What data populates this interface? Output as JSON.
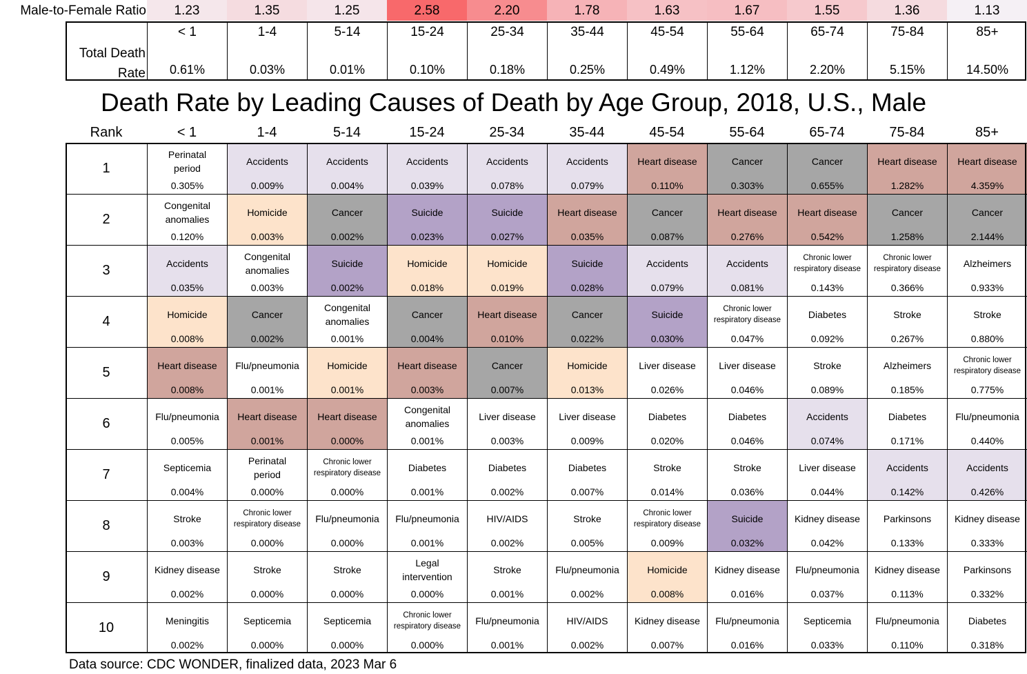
{
  "chart_data": {
    "type": "table",
    "title": "Death Rate by Leading Causes of Death by Age Group, 2018, U.S., Male",
    "ratio_label": "Male-to-Female Ratio",
    "total_label": "Total Death Rate",
    "rank_label": "Rank",
    "source": "Data source: CDC WONDER, finalized data, 2023 Mar 6",
    "age_groups": [
      "< 1",
      "1-4",
      "5-14",
      "15-24",
      "25-34",
      "35-44",
      "45-54",
      "55-64",
      "65-74",
      "75-84",
      "85+"
    ],
    "male_to_female_ratio": [
      "1.23",
      "1.35",
      "1.25",
      "2.58",
      "2.20",
      "1.78",
      "1.63",
      "1.67",
      "1.55",
      "1.36",
      "1.13"
    ],
    "total_death_rate": [
      "0.61%",
      "0.03%",
      "0.01%",
      "0.10%",
      "0.18%",
      "0.25%",
      "0.49%",
      "1.12%",
      "2.20%",
      "5.15%",
      "14.50%"
    ],
    "colors": {
      "Accidents": "#e6e0ec",
      "Heart disease": "#d0a59d",
      "Cancer": "#a6a6a6",
      "Homicide": "#fde3cb",
      "Suicide": "#b3a2c7",
      "ratio_low": "#f5f0f5",
      "ratio_high": "#f8696b"
    },
    "ranks": [
      {
        "rank": "1",
        "cells": [
          {
            "cause": "Perinatal period",
            "rate": "0.305%"
          },
          {
            "cause": "Accidents",
            "rate": "0.009%"
          },
          {
            "cause": "Accidents",
            "rate": "0.004%"
          },
          {
            "cause": "Accidents",
            "rate": "0.039%"
          },
          {
            "cause": "Accidents",
            "rate": "0.078%"
          },
          {
            "cause": "Accidents",
            "rate": "0.079%"
          },
          {
            "cause": "Heart disease",
            "rate": "0.110%"
          },
          {
            "cause": "Cancer",
            "rate": "0.303%"
          },
          {
            "cause": "Cancer",
            "rate": "0.655%"
          },
          {
            "cause": "Heart disease",
            "rate": "1.282%"
          },
          {
            "cause": "Heart disease",
            "rate": "4.359%"
          }
        ]
      },
      {
        "rank": "2",
        "cells": [
          {
            "cause": "Congenital anomalies",
            "rate": "0.120%"
          },
          {
            "cause": "Homicide",
            "rate": "0.003%"
          },
          {
            "cause": "Cancer",
            "rate": "0.002%"
          },
          {
            "cause": "Suicide",
            "rate": "0.023%"
          },
          {
            "cause": "Suicide",
            "rate": "0.027%"
          },
          {
            "cause": "Heart disease",
            "rate": "0.035%"
          },
          {
            "cause": "Cancer",
            "rate": "0.087%"
          },
          {
            "cause": "Heart disease",
            "rate": "0.276%"
          },
          {
            "cause": "Heart disease",
            "rate": "0.542%"
          },
          {
            "cause": "Cancer",
            "rate": "1.258%"
          },
          {
            "cause": "Cancer",
            "rate": "2.144%"
          }
        ]
      },
      {
        "rank": "3",
        "cells": [
          {
            "cause": "Accidents",
            "rate": "0.035%"
          },
          {
            "cause": "Congenital anomalies",
            "rate": "0.003%"
          },
          {
            "cause": "Suicide",
            "rate": "0.002%"
          },
          {
            "cause": "Homicide",
            "rate": "0.018%"
          },
          {
            "cause": "Homicide",
            "rate": "0.019%"
          },
          {
            "cause": "Suicide",
            "rate": "0.028%"
          },
          {
            "cause": "Accidents",
            "rate": "0.079%"
          },
          {
            "cause": "Accidents",
            "rate": "0.081%"
          },
          {
            "cause": "Chronic lower respiratory disease",
            "rate": "0.143%"
          },
          {
            "cause": "Chronic lower respiratory disease",
            "rate": "0.366%"
          },
          {
            "cause": "Alzheimers",
            "rate": "0.933%"
          }
        ]
      },
      {
        "rank": "4",
        "cells": [
          {
            "cause": "Homicide",
            "rate": "0.008%"
          },
          {
            "cause": "Cancer",
            "rate": "0.002%"
          },
          {
            "cause": "Congenital anomalies",
            "rate": "0.001%"
          },
          {
            "cause": "Cancer",
            "rate": "0.004%"
          },
          {
            "cause": "Heart disease",
            "rate": "0.010%"
          },
          {
            "cause": "Cancer",
            "rate": "0.022%"
          },
          {
            "cause": "Suicide",
            "rate": "0.030%"
          },
          {
            "cause": "Chronic lower respiratory disease",
            "rate": "0.047%"
          },
          {
            "cause": "Diabetes",
            "rate": "0.092%"
          },
          {
            "cause": "Stroke",
            "rate": "0.267%"
          },
          {
            "cause": "Stroke",
            "rate": "0.880%"
          }
        ]
      },
      {
        "rank": "5",
        "cells": [
          {
            "cause": "Heart disease",
            "rate": "0.008%"
          },
          {
            "cause": "Flu/pneumonia",
            "rate": "0.001%"
          },
          {
            "cause": "Homicide",
            "rate": "0.001%"
          },
          {
            "cause": "Heart disease",
            "rate": "0.003%"
          },
          {
            "cause": "Cancer",
            "rate": "0.007%"
          },
          {
            "cause": "Homicide",
            "rate": "0.013%"
          },
          {
            "cause": "Liver disease",
            "rate": "0.026%"
          },
          {
            "cause": "Liver disease",
            "rate": "0.046%"
          },
          {
            "cause": "Stroke",
            "rate": "0.089%"
          },
          {
            "cause": "Alzheimers",
            "rate": "0.185%"
          },
          {
            "cause": "Chronic lower respiratory disease",
            "rate": "0.775%"
          }
        ]
      },
      {
        "rank": "6",
        "cells": [
          {
            "cause": "Flu/pneumonia",
            "rate": "0.005%"
          },
          {
            "cause": "Heart disease",
            "rate": "0.001%"
          },
          {
            "cause": "Heart disease",
            "rate": "0.000%"
          },
          {
            "cause": "Congenital anomalies",
            "rate": "0.001%"
          },
          {
            "cause": "Liver disease",
            "rate": "0.003%"
          },
          {
            "cause": "Liver disease",
            "rate": "0.009%"
          },
          {
            "cause": "Diabetes",
            "rate": "0.020%"
          },
          {
            "cause": "Diabetes",
            "rate": "0.046%"
          },
          {
            "cause": "Accidents",
            "rate": "0.074%"
          },
          {
            "cause": "Diabetes",
            "rate": "0.171%"
          },
          {
            "cause": "Flu/pneumonia",
            "rate": "0.440%"
          }
        ]
      },
      {
        "rank": "7",
        "cells": [
          {
            "cause": "Septicemia",
            "rate": "0.004%"
          },
          {
            "cause": "Perinatal period",
            "rate": "0.000%"
          },
          {
            "cause": "Chronic lower respiratory disease",
            "rate": "0.000%"
          },
          {
            "cause": "Diabetes",
            "rate": "0.001%"
          },
          {
            "cause": "Diabetes",
            "rate": "0.002%"
          },
          {
            "cause": "Diabetes",
            "rate": "0.007%"
          },
          {
            "cause": "Stroke",
            "rate": "0.014%"
          },
          {
            "cause": "Stroke",
            "rate": "0.036%"
          },
          {
            "cause": "Liver disease",
            "rate": "0.044%"
          },
          {
            "cause": "Accidents",
            "rate": "0.142%"
          },
          {
            "cause": "Accidents",
            "rate": "0.426%"
          }
        ]
      },
      {
        "rank": "8",
        "cells": [
          {
            "cause": "Stroke",
            "rate": "0.003%"
          },
          {
            "cause": "Chronic lower respiratory disease",
            "rate": "0.000%"
          },
          {
            "cause": "Flu/pneumonia",
            "rate": "0.000%"
          },
          {
            "cause": "Flu/pneumonia",
            "rate": "0.001%"
          },
          {
            "cause": "HIV/AIDS",
            "rate": "0.002%"
          },
          {
            "cause": "Stroke",
            "rate": "0.005%"
          },
          {
            "cause": "Chronic lower respiratory disease",
            "rate": "0.009%"
          },
          {
            "cause": "Suicide",
            "rate": "0.032%"
          },
          {
            "cause": "Kidney disease",
            "rate": "0.042%"
          },
          {
            "cause": "Parkinsons",
            "rate": "0.133%"
          },
          {
            "cause": "Kidney disease",
            "rate": "0.333%"
          }
        ]
      },
      {
        "rank": "9",
        "cells": [
          {
            "cause": "Kidney disease",
            "rate": "0.002%"
          },
          {
            "cause": "Stroke",
            "rate": "0.000%"
          },
          {
            "cause": "Stroke",
            "rate": "0.000%"
          },
          {
            "cause": "Legal intervention",
            "rate": "0.000%"
          },
          {
            "cause": "Stroke",
            "rate": "0.001%"
          },
          {
            "cause": "Flu/pneumonia",
            "rate": "0.002%"
          },
          {
            "cause": "Homicide",
            "rate": "0.008%"
          },
          {
            "cause": "Kidney disease",
            "rate": "0.016%"
          },
          {
            "cause": "Flu/pneumonia",
            "rate": "0.037%"
          },
          {
            "cause": "Kidney disease",
            "rate": "0.113%"
          },
          {
            "cause": "Parkinsons",
            "rate": "0.332%"
          }
        ]
      },
      {
        "rank": "10",
        "cells": [
          {
            "cause": "Meningitis",
            "rate": "0.002%"
          },
          {
            "cause": "Septicemia",
            "rate": "0.000%"
          },
          {
            "cause": "Septicemia",
            "rate": "0.000%"
          },
          {
            "cause": "Chronic lower respiratory disease",
            "rate": "0.000%"
          },
          {
            "cause": "Flu/pneumonia",
            "rate": "0.001%"
          },
          {
            "cause": "HIV/AIDS",
            "rate": "0.002%"
          },
          {
            "cause": "Kidney disease",
            "rate": "0.007%"
          },
          {
            "cause": "Flu/pneumonia",
            "rate": "0.016%"
          },
          {
            "cause": "Septicemia",
            "rate": "0.033%"
          },
          {
            "cause": "Flu/pneumonia",
            "rate": "0.110%"
          },
          {
            "cause": "Diabetes",
            "rate": "0.318%"
          }
        ]
      }
    ]
  }
}
